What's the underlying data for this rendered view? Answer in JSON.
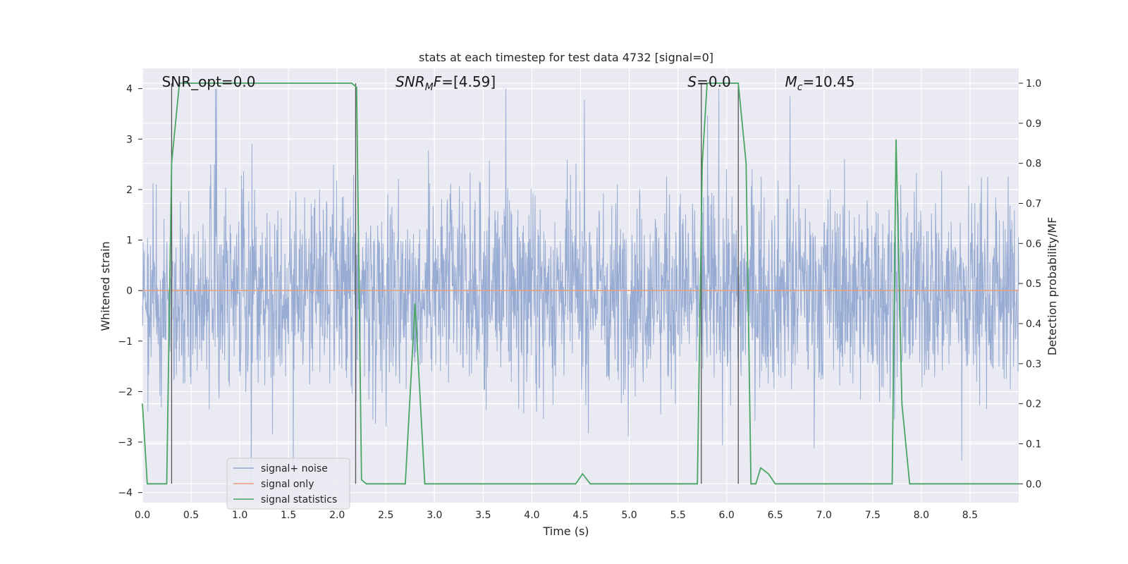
{
  "chart_data": {
    "type": "line",
    "title": "stats at each timestep for test data 4732 [signal=0]",
    "xlabel": "Time (s)",
    "ylabel": "Whitened strain",
    "y2label": "Detection probability/MF",
    "xlim": [
      0.0,
      9.0
    ],
    "ylim": [
      -4.2,
      4.4
    ],
    "y2lim": [
      -0.047,
      1.037
    ],
    "xticks": [
      "0.0",
      "0.5",
      "1.0",
      "1.5",
      "2.0",
      "2.5",
      "3.0",
      "3.5",
      "4.0",
      "4.5",
      "5.0",
      "5.5",
      "6.0",
      "6.5",
      "7.0",
      "7.5",
      "8.0",
      "8.5"
    ],
    "yticks": [
      "4",
      "3",
      "2",
      "1",
      "0",
      "−1",
      "−2",
      "−3",
      "−4"
    ],
    "y2ticks": [
      "1.0",
      "0.9",
      "0.8",
      "0.7",
      "0.6",
      "0.5",
      "0.4",
      "0.3",
      "0.2",
      "0.1",
      "0.0"
    ],
    "grid": true,
    "legend_position": "lower-left",
    "annotations": [
      {
        "text": "SNR_opt=0.0",
        "x": 0.2
      },
      {
        "text": "SNRMF=[4.59]",
        "x": 2.6
      },
      {
        "text": "S=0.0",
        "x": 5.6
      },
      {
        "text": "Mc=10.45",
        "x": 6.6
      }
    ],
    "series": [
      {
        "name": "signal+ noise",
        "color": "#8fa5cf",
        "style": "dense noise, roughly ±2 core, peaks to ±4"
      },
      {
        "name": "signal only",
        "color": "#e8a07c",
        "values_constant": 0.0
      },
      {
        "name": "signal statistics",
        "color": "#4aa564",
        "axis": "right",
        "x": [
          0.0,
          0.05,
          0.25,
          0.3,
          0.38,
          2.15,
          2.2,
          2.25,
          2.3,
          2.4,
          2.7,
          2.8,
          2.9,
          3.0,
          3.55,
          4.45,
          4.52,
          4.6,
          4.7,
          5.7,
          5.75,
          5.8,
          6.12,
          6.2,
          6.25,
          6.3,
          6.35,
          6.43,
          6.5,
          6.7,
          6.75,
          7.3,
          7.4,
          7.7,
          7.74,
          7.8,
          7.88,
          8.0,
          9.0
        ],
        "y": [
          0.2,
          0.0,
          0.0,
          0.8,
          1.0,
          1.0,
          0.99,
          0.01,
          0.0,
          0.0,
          0.0,
          0.45,
          0.0,
          0.0,
          0.0,
          0.0,
          0.025,
          0.0,
          0.0,
          0.0,
          0.8,
          1.0,
          1.0,
          0.8,
          0.0,
          0.0,
          0.04,
          0.025,
          0.0,
          0.0,
          0.0,
          0.0,
          0.0,
          0.0,
          0.86,
          0.2,
          0.0,
          0.0,
          0.0
        ]
      }
    ],
    "vertical_markers": [
      0.3,
      2.19,
      5.74,
      6.12
    ]
  },
  "legend": {
    "items": [
      "signal+ noise",
      "signal only",
      "signal statistics"
    ]
  }
}
